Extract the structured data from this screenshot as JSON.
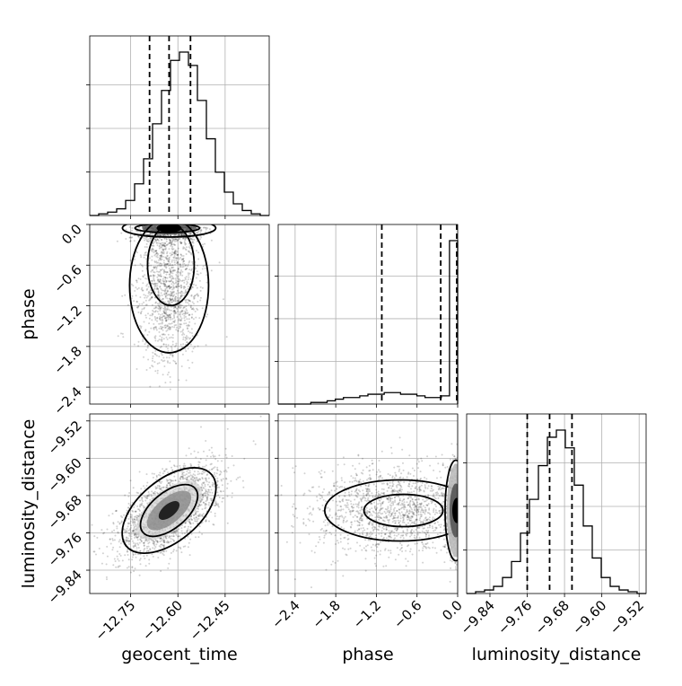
{
  "chart_data": {
    "type": "corner",
    "parameters": [
      "geocent_time",
      "phase",
      "luminosity_distance"
    ],
    "axis_labels": {
      "geocent_time": "geocent_time",
      "phase": "phase",
      "luminosity_distance": "luminosity_distance"
    },
    "ranges": {
      "geocent_time": [
        -12.88,
        -12.31
      ],
      "phase": [
        -2.65,
        0.0
      ],
      "luminosity_distance": [
        -9.89,
        -9.505
      ]
    },
    "ticks": {
      "geocent_time": [
        -12.75,
        -12.6,
        -12.45
      ],
      "phase": [
        -2.4,
        -1.8,
        -1.2,
        -0.6,
        0.0
      ],
      "luminosity_distance": [
        -9.84,
        -9.76,
        -9.68,
        -9.6,
        -9.52
      ]
    },
    "tick_labels": {
      "geocent_time": [
        "−12.75",
        "−12.60",
        "−12.45"
      ],
      "phase": [
        "−2.4",
        "−1.8",
        "−1.2",
        "−0.6",
        "0.0"
      ],
      "luminosity_distance": [
        "−9.84",
        "−9.76",
        "−9.68",
        "−9.60",
        "−9.52"
      ]
    },
    "quantiles": {
      "geocent_time": [
        -12.69,
        -12.628,
        -12.56
      ],
      "phase": [
        -1.12,
        -0.25,
        0.0
      ],
      "luminosity_distance": [
        -9.76,
        -9.712,
        -9.664
      ]
    },
    "histograms": {
      "geocent_time": [
        0,
        1,
        2,
        4,
        9,
        19,
        34,
        55,
        75,
        93,
        98,
        90,
        69,
        46,
        26,
        14,
        7,
        3,
        1,
        0
      ],
      "phase": [
        0,
        0,
        0,
        0,
        1,
        1,
        2,
        3,
        4,
        4,
        5,
        6,
        6,
        7,
        7,
        6,
        6,
        5,
        4,
        4,
        5,
        100
      ],
      "luminosity_distance": [
        0,
        1,
        2,
        4,
        9,
        18,
        34,
        53,
        72,
        88,
        92,
        82,
        61,
        38,
        20,
        9,
        4,
        2,
        1,
        0
      ]
    },
    "grid": true
  }
}
